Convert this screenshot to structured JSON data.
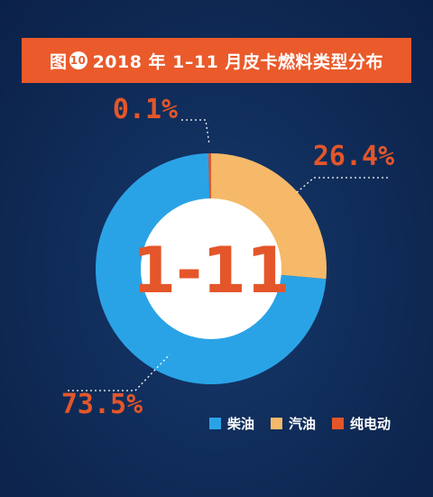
{
  "title": {
    "prefix": "图",
    "number": "10",
    "text": "2018 年 1–11 月皮卡燃料类型分布"
  },
  "chart_data": {
    "type": "pie",
    "title": "2018 年 1–11 月皮卡燃料类型分布",
    "center_label": "1-11",
    "legend_placement": "bottom-right",
    "slices": [
      {
        "name": "纯电动",
        "value": 0.1,
        "label": "0.1%",
        "color": "#e4562a"
      },
      {
        "name": "汽油",
        "value": 26.4,
        "label": "26.4%",
        "color": "#f5b969"
      },
      {
        "name": "柴油",
        "value": 73.5,
        "label": "73.5%",
        "color": "#2aa3e6"
      }
    ]
  },
  "colors": {
    "background": "#0f2b57",
    "banner": "#ea5a2b",
    "label_text": "#e4562a"
  }
}
